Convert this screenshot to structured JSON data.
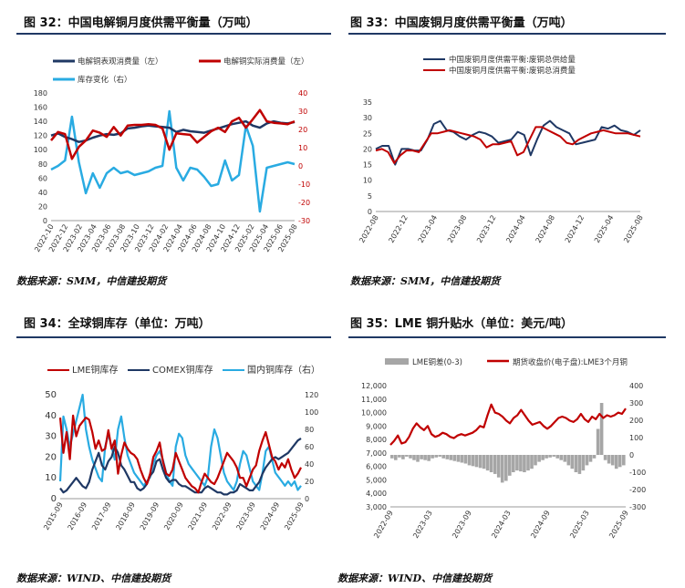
{
  "panels": [
    {
      "title": "图 32：中国电解铜月度供需平衡量（万吨）",
      "source": "数据来源：SMM，中信建投期货"
    },
    {
      "title": "图 33：中国废铜月度供需平衡量（万吨）",
      "source": "数据来源：SMM，中信建投期货"
    },
    {
      "title": "图 34：全球铜库存（单位：万吨）",
      "source": "数据来源：WIND、中信建投期货"
    },
    {
      "title": "图 35：LME 铜升贴水（单位：美元/吨）",
      "source": "数据来源：WIND、中信建投期货"
    }
  ],
  "chart_data": [
    {
      "type": "line",
      "series": [
        {
          "name": "电解铜表观消费量（左）",
          "color": "#1f3864",
          "axis": "left",
          "values": [
            120,
            123,
            118,
            115,
            111,
            113,
            117,
            120,
            122,
            121,
            123,
            130,
            131,
            133,
            134,
            133,
            132,
            131,
            125,
            128,
            126,
            125,
            124,
            127,
            130,
            133,
            136,
            138,
            140,
            134,
            131,
            137,
            140,
            138,
            137,
            139
          ]
        },
        {
          "name": "电解铜实际消费量（左）",
          "color": "#c00000",
          "axis": "left",
          "values": [
            113,
            125,
            122,
            87,
            104,
            113,
            127,
            124,
            118,
            132,
            120,
            134,
            135,
            135,
            136,
            135,
            130,
            100,
            123,
            122,
            121,
            110,
            118,
            126,
            131,
            125,
            140,
            145,
            131,
            143,
            156,
            140,
            138,
            137,
            136,
            140
          ]
        },
        {
          "name": "库存变化（右）",
          "color": "#29abe2",
          "axis": "right",
          "values": [
            -2,
            0,
            3,
            27,
            2,
            -15,
            -4,
            -12,
            -4,
            -1,
            -4,
            -3,
            -5,
            -4,
            -3,
            -1,
            0,
            30,
            -1,
            -8,
            -1,
            -2,
            -6,
            -11,
            -10,
            3,
            -8,
            -5,
            22,
            11,
            -25,
            -1,
            0,
            1,
            2,
            1
          ]
        }
      ],
      "xlabels": [
        "2022-10",
        "2022-12",
        "2023-02",
        "2023-04",
        "2023-06",
        "2023-08",
        "2023-10",
        "2023-12",
        "2024-02",
        "2024-04",
        "2024-06",
        "2024-08",
        "2024-10",
        "2024-12",
        "2025-02",
        "2025-04",
        "2025-06",
        "2025-08"
      ],
      "ylim_left": [
        0,
        180
      ],
      "yticks_left": [
        "0",
        "20",
        "40",
        "60",
        "80",
        "100",
        "120",
        "140",
        "160",
        "180"
      ],
      "ylim_right": [
        -30,
        40
      ],
      "yticks_right": [
        "-30",
        "-20",
        "-10",
        "0",
        "10",
        "20",
        "30",
        "40"
      ],
      "legend_position": "top"
    },
    {
      "type": "line",
      "series": [
        {
          "name": "中国废铜月度供需平衡:废铜总供给量",
          "color": "#1f3864",
          "values": [
            20,
            21,
            21,
            15,
            20,
            20,
            19.5,
            19.5,
            23,
            28,
            29,
            26,
            25.5,
            24,
            23,
            24.5,
            25.5,
            25,
            24,
            22,
            22.5,
            23,
            25.5,
            24.5,
            18,
            23,
            27.5,
            29,
            27,
            26,
            25,
            21.5,
            22,
            22.5,
            23,
            27,
            26.5,
            27.5,
            26,
            25.5,
            24.5,
            26
          ]
        },
        {
          "name": "中国废铜月度供需平衡:废铜总消费量",
          "color": "#c00000",
          "values": [
            19.5,
            20,
            19,
            15.5,
            18,
            19.5,
            19.5,
            19,
            22,
            25,
            25,
            25.5,
            26,
            25.5,
            25,
            24.5,
            24,
            23,
            20.5,
            21.5,
            21.5,
            22,
            22.5,
            18,
            19,
            23,
            27,
            27,
            26,
            25,
            24,
            22,
            21.5,
            23,
            24,
            25,
            25.5,
            26,
            25.5,
            25,
            25,
            25,
            24.5,
            24
          ]
        }
      ],
      "xlabels": [
        "2022-08",
        "2022-12",
        "2023-04",
        "2023-08",
        "2023-12",
        "2024-04",
        "2024-08",
        "2024-12",
        "2025-04",
        "2025-08"
      ],
      "ylim": [
        0,
        35
      ],
      "yticks": [
        "0",
        "5",
        "10",
        "15",
        "20",
        "25",
        "30",
        "35"
      ],
      "legend_position": "top-left"
    },
    {
      "type": "line",
      "series": [
        {
          "name": "LME铜库存",
          "color": "#c00000",
          "axis": "left",
          "values": [
            39,
            22,
            32,
            19,
            40,
            30,
            35,
            37,
            39,
            38,
            32,
            24,
            28,
            23,
            24,
            33,
            24,
            28,
            12,
            21,
            27,
            24,
            22,
            21,
            19,
            14,
            10,
            7,
            12,
            20,
            23,
            27,
            18,
            12,
            11,
            14,
            22,
            18,
            14,
            10,
            8,
            6,
            5,
            3,
            8,
            12,
            10,
            8,
            7,
            10,
            14,
            18,
            22,
            20,
            18,
            15,
            10,
            10,
            6,
            10,
            14,
            16,
            23,
            28,
            32,
            26,
            20,
            18,
            14,
            17,
            15,
            19,
            14,
            10,
            12,
            15
          ]
        },
        {
          "name": "COMEX铜库存",
          "color": "#1f3864",
          "axis": "left",
          "values": [
            5,
            3,
            4,
            6,
            8,
            10,
            8,
            6,
            5,
            8,
            14,
            18,
            22,
            16,
            14,
            18,
            20,
            25,
            22,
            16,
            14,
            11,
            8,
            8,
            5,
            4,
            5,
            7,
            11,
            13,
            18,
            19,
            14,
            10,
            8,
            9,
            9,
            7,
            6,
            6,
            5,
            4,
            3,
            3,
            3,
            5,
            6,
            5,
            4,
            3,
            3,
            2,
            2,
            3,
            3,
            4,
            7,
            6,
            5,
            4,
            4,
            6,
            8,
            12,
            15,
            17,
            19,
            20,
            19,
            20,
            21,
            22,
            24,
            26,
            28,
            29
          ]
        },
        {
          "name": "国内铜库存（右）",
          "color": "#29abe2",
          "axis": "right",
          "values": [
            20,
            95,
            80,
            60,
            75,
            90,
            105,
            120,
            80,
            60,
            45,
            35,
            25,
            20,
            60,
            75,
            60,
            45,
            80,
            95,
            70,
            50,
            40,
            30,
            25,
            20,
            15,
            20,
            25,
            40,
            50,
            55,
            45,
            30,
            20,
            15,
            60,
            75,
            70,
            50,
            40,
            35,
            30,
            25,
            20,
            15,
            25,
            60,
            80,
            70,
            50,
            30,
            20,
            15,
            10,
            20,
            40,
            55,
            50,
            35,
            20,
            15,
            10,
            30,
            55,
            60,
            45,
            30,
            25,
            20,
            15,
            20,
            15,
            20,
            10,
            15
          ]
        }
      ],
      "xlabels": [
        "2015-09",
        "2016-09",
        "2017-09",
        "2018-09",
        "2019-09",
        "2020-09",
        "2021-09",
        "2022-09",
        "2023-09",
        "2024-09",
        "2025-09"
      ],
      "ylim_left": [
        0,
        50
      ],
      "yticks_left": [
        "0",
        "10",
        "20",
        "30",
        "40",
        "50"
      ],
      "ylim_right": [
        0,
        120
      ],
      "yticks_right": [
        "0",
        "20",
        "40",
        "60",
        "80",
        "100",
        "120"
      ],
      "legend_position": "top"
    },
    {
      "type": "bar+line",
      "series": [
        {
          "name": "LME铜差(0-3)",
          "color": "#a6a6a6",
          "type": "bar",
          "axis": "right",
          "values": [
            -20,
            -30,
            -15,
            -25,
            -10,
            -20,
            -30,
            -40,
            -25,
            -30,
            -35,
            -20,
            -15,
            -10,
            -20,
            -25,
            -30,
            -35,
            -40,
            -45,
            -50,
            -60,
            -65,
            -70,
            -75,
            -80,
            -90,
            -100,
            -110,
            -130,
            -160,
            -150,
            -120,
            -100,
            -90,
            -95,
            -100,
            -90,
            -80,
            -60,
            -40,
            -30,
            -20,
            -15,
            -10,
            -20,
            -30,
            -40,
            -60,
            -80,
            -100,
            -110,
            -90,
            -60,
            -40,
            -20,
            150,
            300,
            -30,
            -50,
            -60,
            -80,
            -70,
            -60
          ]
        },
        {
          "name": "期货收盘价(电子盘):LME3个月铜",
          "color": "#c00000",
          "type": "line",
          "axis": "left",
          "values": [
            7600,
            7900,
            8300,
            7700,
            7800,
            8200,
            8800,
            9200,
            8900,
            8700,
            9000,
            8400,
            8200,
            8300,
            8500,
            8400,
            8200,
            8100,
            8300,
            8400,
            8300,
            8400,
            8500,
            8700,
            9000,
            8900,
            9800,
            10600,
            10000,
            9900,
            9700,
            9400,
            9200,
            9600,
            9800,
            10200,
            9800,
            9400,
            9100,
            9200,
            9300,
            9000,
            8800,
            9000,
            9300,
            9600,
            9700,
            9600,
            9400,
            9300,
            9500,
            9900,
            9500,
            9300,
            9700,
            9500,
            9900,
            9600,
            9800,
            9700,
            9800,
            10000,
            9900,
            10300
          ]
        }
      ],
      "xlabels": [
        "2022-09",
        "2023-03",
        "2023-09",
        "2024-03",
        "2024-09",
        "2025-03",
        "2025-09"
      ],
      "ylim_left": [
        3000,
        12000
      ],
      "yticks_left": [
        "3,000",
        "4,000",
        "5,000",
        "6,000",
        "7,000",
        "8,000",
        "9,000",
        "10,000",
        "11,000",
        "12,000"
      ],
      "ylim_right": [
        -300,
        400
      ],
      "yticks_right": [
        "-300",
        "-200",
        "-100",
        "0",
        "100",
        "200",
        "300",
        "400"
      ],
      "legend_position": "top"
    }
  ]
}
